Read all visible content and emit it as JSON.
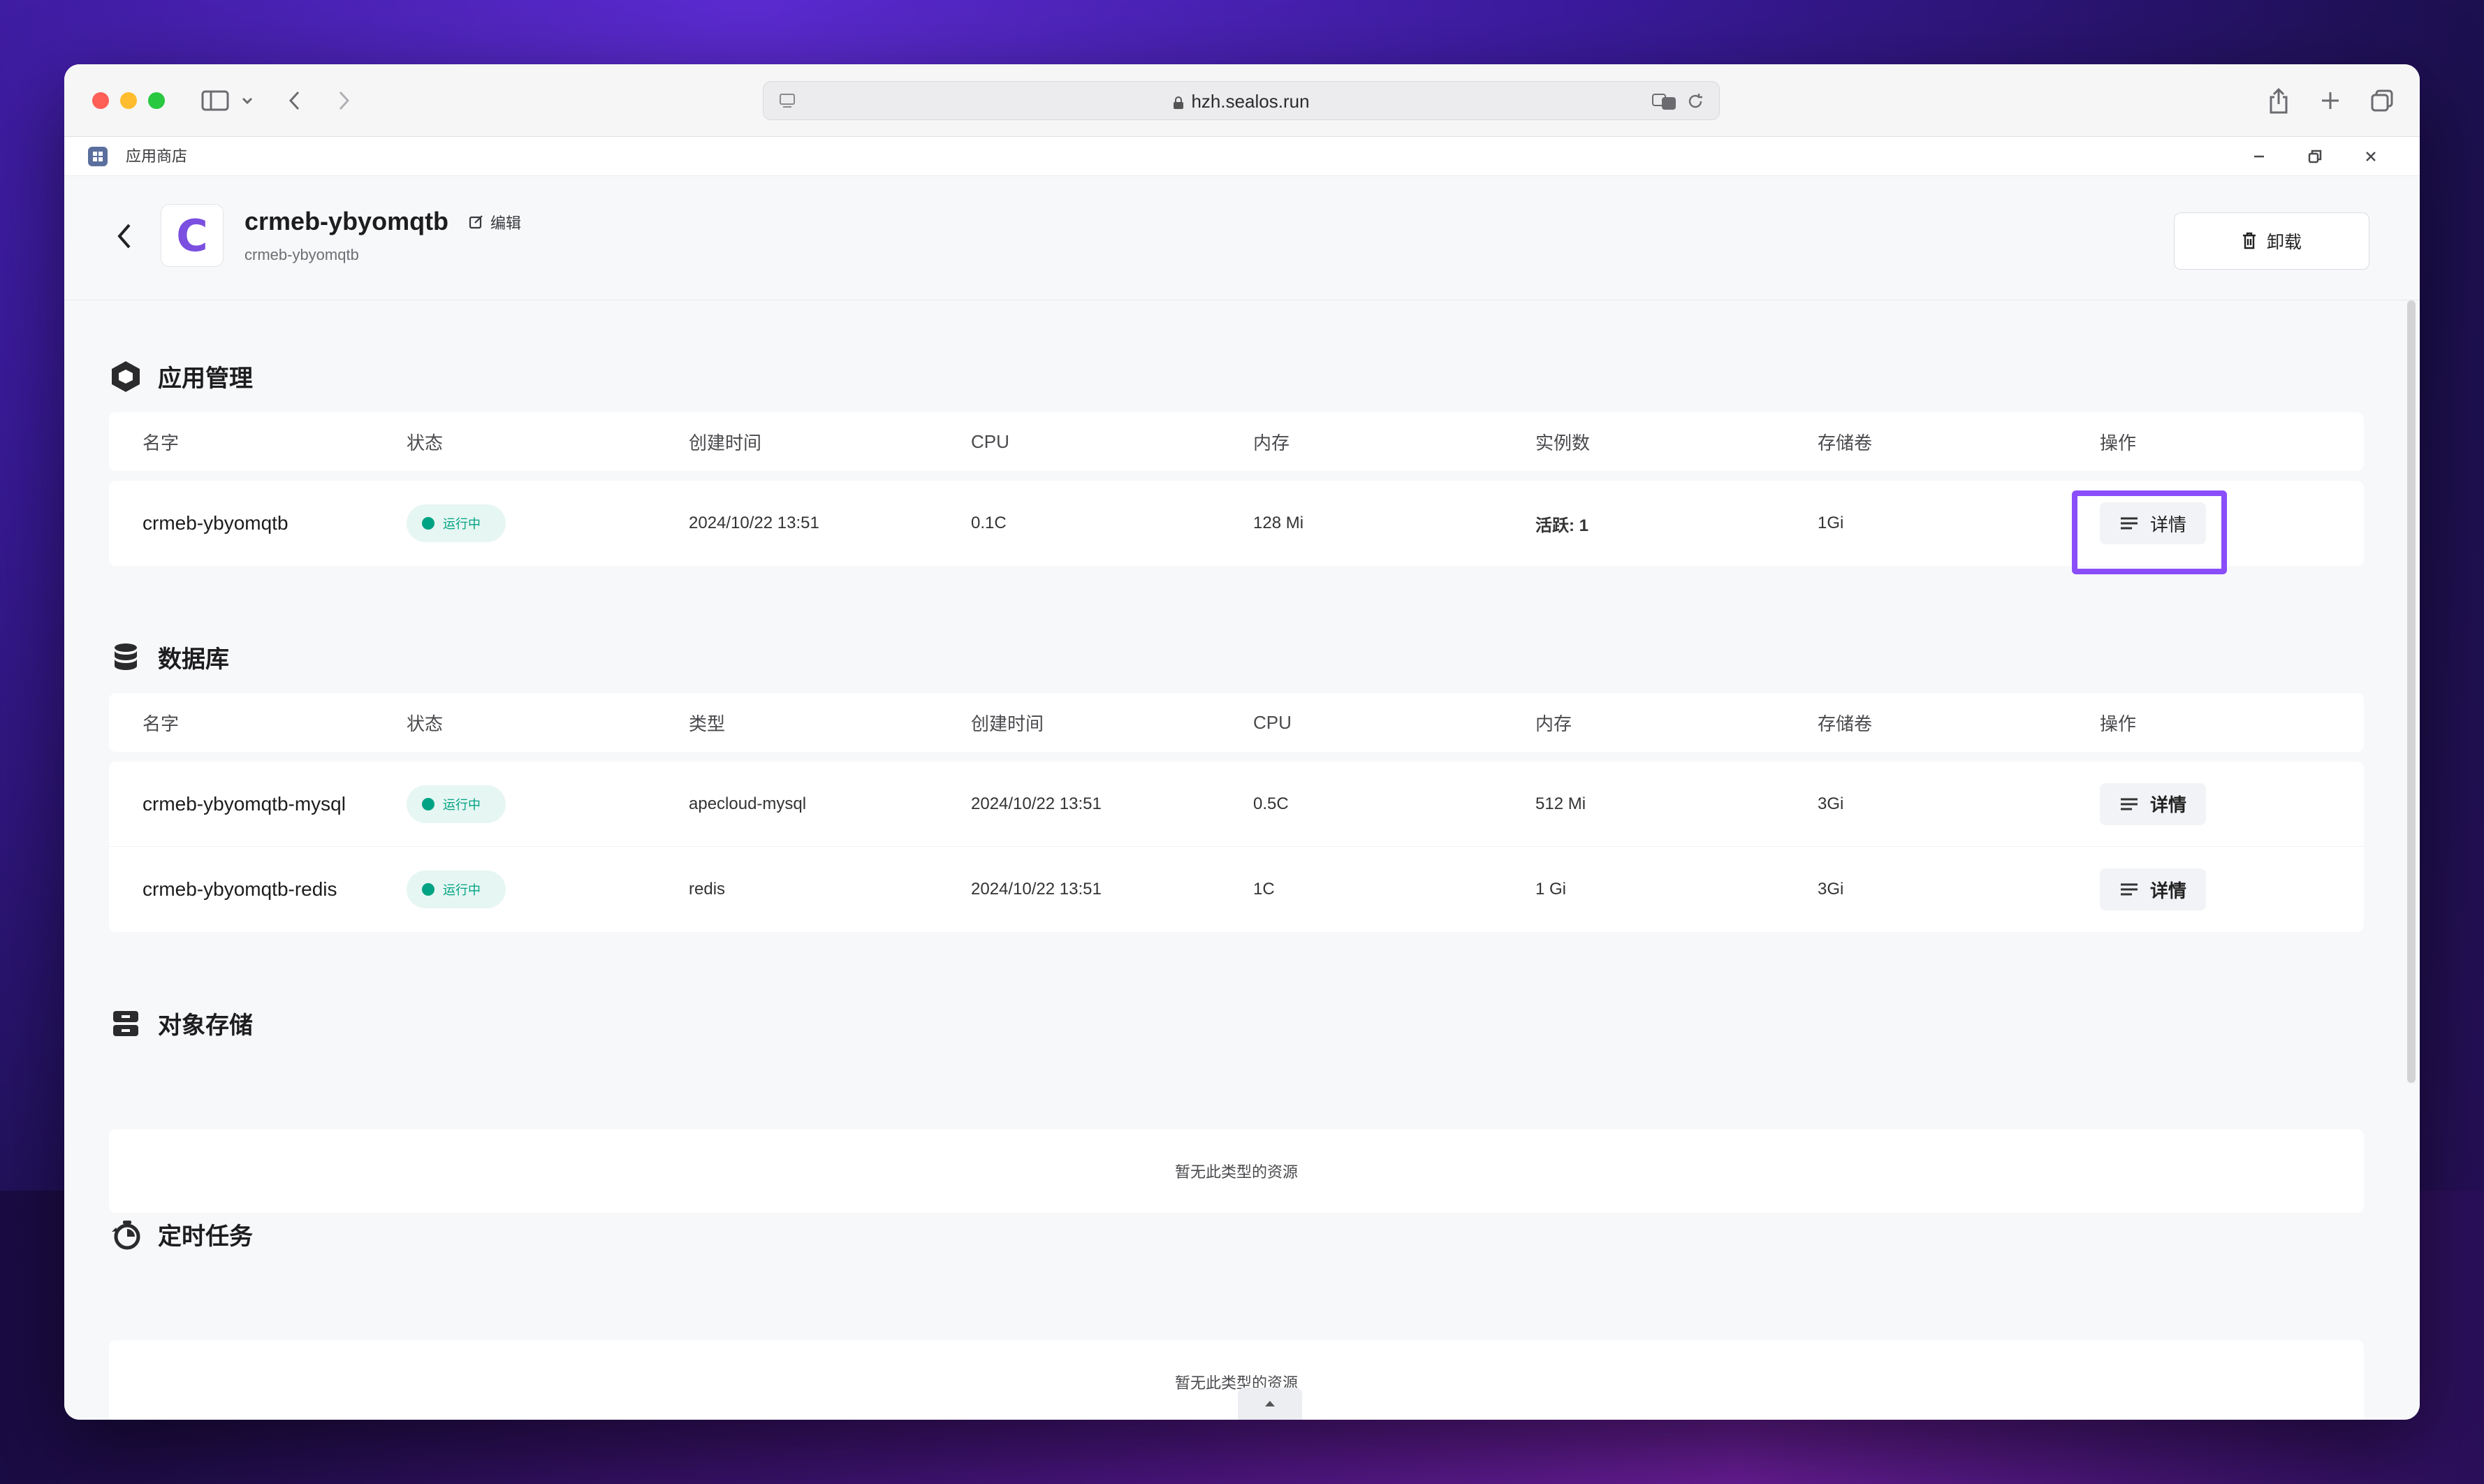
{
  "browser": {
    "url": "hzh.sealos.run"
  },
  "tab": {
    "title": "应用商店"
  },
  "header": {
    "app_logo_letter": "C",
    "app_name": "crmeb-ybyomqtb",
    "edit_label": "编辑",
    "app_subname": "crmeb-ybyomqtb",
    "uninstall_label": "卸载"
  },
  "app_section": {
    "title": "应用管理",
    "columns": [
      "名字",
      "状态",
      "创建时间",
      "CPU",
      "内存",
      "实例数",
      "存储卷",
      "操作"
    ],
    "rows": [
      {
        "name": "crmeb-ybyomqtb",
        "status": "运行中",
        "created": "2024/10/22 13:51",
        "cpu": "0.1C",
        "memory": "128 Mi",
        "instances": "活跃: 1",
        "storage": "1Gi",
        "action": "详情"
      }
    ]
  },
  "db_section": {
    "title": "数据库",
    "columns": [
      "名字",
      "状态",
      "类型",
      "创建时间",
      "CPU",
      "内存",
      "存储卷",
      "操作"
    ],
    "rows": [
      {
        "name": "crmeb-ybyomqtb-mysql",
        "status": "运行中",
        "type": "apecloud-mysql",
        "created": "2024/10/22 13:51",
        "cpu": "0.5C",
        "memory": "512 Mi",
        "storage": "3Gi",
        "action": "详情"
      },
      {
        "name": "crmeb-ybyomqtb-redis",
        "status": "运行中",
        "type": "redis",
        "created": "2024/10/22 13:51",
        "cpu": "1C",
        "memory": "1 Gi",
        "storage": "3Gi",
        "action": "详情"
      }
    ]
  },
  "object_storage_section": {
    "title": "对象存储",
    "empty_text": "暂无此类型的资源"
  },
  "cron_section": {
    "title": "定时任务",
    "empty_text": "暂无此类型的资源"
  },
  "colors": {
    "highlight": "#8a4dfa",
    "status_running": "#00a383",
    "status_bg": "#e6f6f3"
  }
}
